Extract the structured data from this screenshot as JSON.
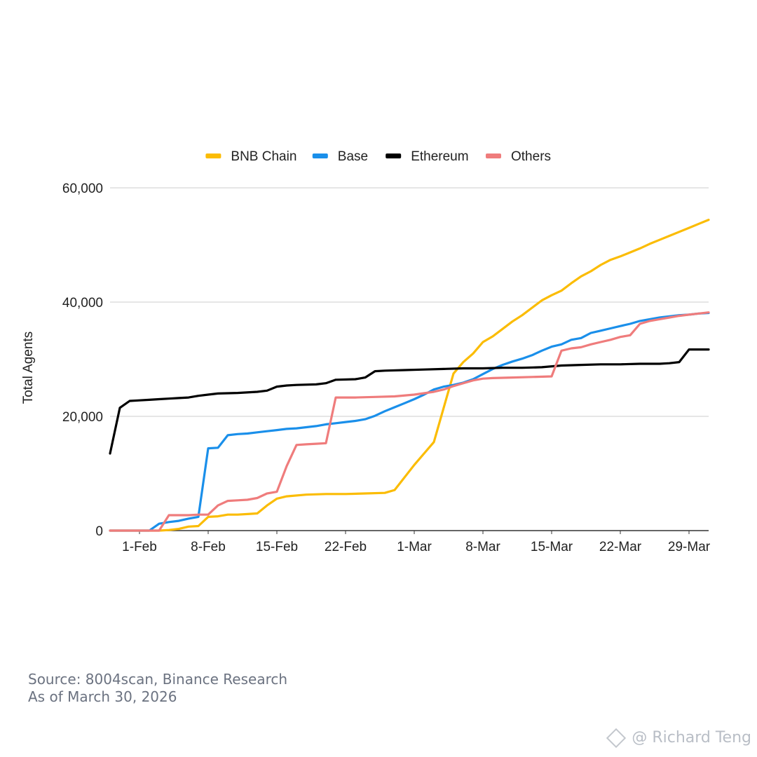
{
  "chart_data": {
    "type": "line",
    "title": "",
    "xlabel": "",
    "ylabel": "Total Agents",
    "ylim": [
      0,
      60000
    ],
    "yticks": [
      0,
      20000,
      40000,
      60000
    ],
    "ytick_labels": [
      "0",
      "20,000",
      "40,000",
      "60,000"
    ],
    "xlim_days": [
      -3,
      58
    ],
    "x_unit": "days since 1-Feb",
    "xticks": [
      0,
      7,
      14,
      21,
      28,
      35,
      42,
      49,
      56
    ],
    "xtick_labels": [
      "1-Feb",
      "8-Feb",
      "15-Feb",
      "22-Feb",
      "1-Mar",
      "8-Mar",
      "15-Mar",
      "22-Mar",
      "29-Mar"
    ],
    "grid": true,
    "legend_position": "top",
    "series": [
      {
        "name": "BNB Chain",
        "color": "#FBBC04",
        "points": [
          [
            -3,
            0
          ],
          [
            2,
            0
          ],
          [
            3,
            100
          ],
          [
            4,
            300
          ],
          [
            5,
            700
          ],
          [
            6,
            800
          ],
          [
            7,
            2400
          ],
          [
            8,
            2500
          ],
          [
            9,
            2800
          ],
          [
            10,
            2800
          ],
          [
            11,
            2900
          ],
          [
            12,
            3000
          ],
          [
            13,
            4400
          ],
          [
            14,
            5600
          ],
          [
            15,
            6000
          ],
          [
            17,
            6300
          ],
          [
            19,
            6400
          ],
          [
            21,
            6400
          ],
          [
            23,
            6500
          ],
          [
            25,
            6600
          ],
          [
            26,
            7100
          ],
          [
            28,
            11500
          ],
          [
            29,
            13500
          ],
          [
            30,
            15500
          ],
          [
            31,
            21500
          ],
          [
            32,
            27500
          ],
          [
            33,
            29500
          ],
          [
            34,
            31000
          ],
          [
            35,
            33000
          ],
          [
            36,
            34000
          ],
          [
            37,
            35300
          ],
          [
            38,
            36600
          ],
          [
            39,
            37700
          ],
          [
            40,
            39000
          ],
          [
            41,
            40300
          ],
          [
            42,
            41200
          ],
          [
            43,
            42000
          ],
          [
            44,
            43300
          ],
          [
            45,
            44500
          ],
          [
            46,
            45400
          ],
          [
            47,
            46500
          ],
          [
            48,
            47400
          ],
          [
            49,
            48000
          ],
          [
            50,
            48700
          ],
          [
            51,
            49400
          ],
          [
            52,
            50200
          ],
          [
            53,
            50900
          ],
          [
            54,
            51600
          ],
          [
            55,
            52300
          ],
          [
            56,
            53000
          ],
          [
            57,
            53700
          ],
          [
            58,
            54400
          ]
        ]
      },
      {
        "name": "Base",
        "color": "#1A8FEA",
        "points": [
          [
            -3,
            0
          ],
          [
            1,
            0
          ],
          [
            2,
            1200
          ],
          [
            3,
            1500
          ],
          [
            4,
            1700
          ],
          [
            5,
            2100
          ],
          [
            6,
            2400
          ],
          [
            7,
            14400
          ],
          [
            8,
            14500
          ],
          [
            9,
            16700
          ],
          [
            10,
            16900
          ],
          [
            11,
            17000
          ],
          [
            12,
            17200
          ],
          [
            13,
            17400
          ],
          [
            14,
            17600
          ],
          [
            15,
            17800
          ],
          [
            16,
            17900
          ],
          [
            17,
            18100
          ],
          [
            18,
            18300
          ],
          [
            19,
            18600
          ],
          [
            20,
            18800
          ],
          [
            21,
            19000
          ],
          [
            22,
            19200
          ],
          [
            23,
            19500
          ],
          [
            24,
            20100
          ],
          [
            25,
            20900
          ],
          [
            26,
            21600
          ],
          [
            27,
            22300
          ],
          [
            28,
            23000
          ],
          [
            29,
            23800
          ],
          [
            30,
            24700
          ],
          [
            31,
            25200
          ],
          [
            32,
            25500
          ],
          [
            33,
            25900
          ],
          [
            34,
            26500
          ],
          [
            35,
            27400
          ],
          [
            36,
            28300
          ],
          [
            37,
            29000
          ],
          [
            38,
            29600
          ],
          [
            39,
            30100
          ],
          [
            40,
            30700
          ],
          [
            41,
            31500
          ],
          [
            42,
            32200
          ],
          [
            43,
            32600
          ],
          [
            44,
            33400
          ],
          [
            45,
            33700
          ],
          [
            46,
            34600
          ],
          [
            47,
            35000
          ],
          [
            48,
            35400
          ],
          [
            49,
            35800
          ],
          [
            50,
            36200
          ],
          [
            51,
            36700
          ],
          [
            52,
            37000
          ],
          [
            53,
            37300
          ],
          [
            54,
            37500
          ],
          [
            55,
            37700
          ],
          [
            56,
            37800
          ],
          [
            57,
            38000
          ],
          [
            58,
            38100
          ]
        ]
      },
      {
        "name": "Ethereum",
        "color": "#000000",
        "points": [
          [
            -3,
            13500
          ],
          [
            -2,
            21500
          ],
          [
            -1,
            22700
          ],
          [
            0,
            22800
          ],
          [
            1,
            22900
          ],
          [
            2,
            23000
          ],
          [
            3,
            23100
          ],
          [
            4,
            23200
          ],
          [
            5,
            23300
          ],
          [
            6,
            23600
          ],
          [
            7,
            23800
          ],
          [
            8,
            24000
          ],
          [
            10,
            24100
          ],
          [
            12,
            24300
          ],
          [
            13,
            24500
          ],
          [
            14,
            25200
          ],
          [
            15,
            25400
          ],
          [
            16,
            25500
          ],
          [
            18,
            25600
          ],
          [
            19,
            25800
          ],
          [
            20,
            26400
          ],
          [
            22,
            26500
          ],
          [
            23,
            26800
          ],
          [
            24,
            27900
          ],
          [
            25,
            28000
          ],
          [
            27,
            28100
          ],
          [
            29,
            28200
          ],
          [
            31,
            28300
          ],
          [
            33,
            28400
          ],
          [
            35,
            28400
          ],
          [
            37,
            28500
          ],
          [
            39,
            28500
          ],
          [
            41,
            28600
          ],
          [
            43,
            28900
          ],
          [
            45,
            29000
          ],
          [
            47,
            29100
          ],
          [
            49,
            29100
          ],
          [
            51,
            29200
          ],
          [
            53,
            29200
          ],
          [
            54,
            29300
          ],
          [
            55,
            29500
          ],
          [
            56,
            31700
          ],
          [
            58,
            31700
          ]
        ]
      },
      {
        "name": "Others",
        "color": "#EF7C7C",
        "points": [
          [
            -3,
            0
          ],
          [
            2,
            0
          ],
          [
            3,
            2700
          ],
          [
            4,
            2700
          ],
          [
            5,
            2700
          ],
          [
            6,
            2800
          ],
          [
            7,
            2800
          ],
          [
            8,
            4400
          ],
          [
            9,
            5200
          ],
          [
            10,
            5300
          ],
          [
            11,
            5400
          ],
          [
            12,
            5700
          ],
          [
            13,
            6500
          ],
          [
            14,
            6800
          ],
          [
            15,
            11300
          ],
          [
            16,
            15000
          ],
          [
            17,
            15100
          ],
          [
            18,
            15200
          ],
          [
            19,
            15300
          ],
          [
            20,
            23300
          ],
          [
            22,
            23300
          ],
          [
            24,
            23400
          ],
          [
            26,
            23500
          ],
          [
            28,
            23800
          ],
          [
            30,
            24300
          ],
          [
            31,
            24700
          ],
          [
            32,
            25300
          ],
          [
            33,
            25800
          ],
          [
            34,
            26300
          ],
          [
            35,
            26600
          ],
          [
            36,
            26700
          ],
          [
            38,
            26800
          ],
          [
            40,
            26900
          ],
          [
            42,
            27000
          ],
          [
            43,
            31500
          ],
          [
            44,
            31900
          ],
          [
            45,
            32100
          ],
          [
            46,
            32600
          ],
          [
            47,
            33000
          ],
          [
            48,
            33400
          ],
          [
            49,
            33900
          ],
          [
            50,
            34200
          ],
          [
            51,
            36200
          ],
          [
            52,
            36700
          ],
          [
            53,
            37000
          ],
          [
            54,
            37300
          ],
          [
            55,
            37600
          ],
          [
            56,
            37800
          ],
          [
            57,
            38000
          ],
          [
            58,
            38200
          ]
        ]
      }
    ]
  },
  "footer": {
    "source": "Source: 8004scan, Binance Research",
    "as_of": "As of March 30, 2026"
  },
  "watermark": {
    "text": "@ Richard Teng"
  }
}
